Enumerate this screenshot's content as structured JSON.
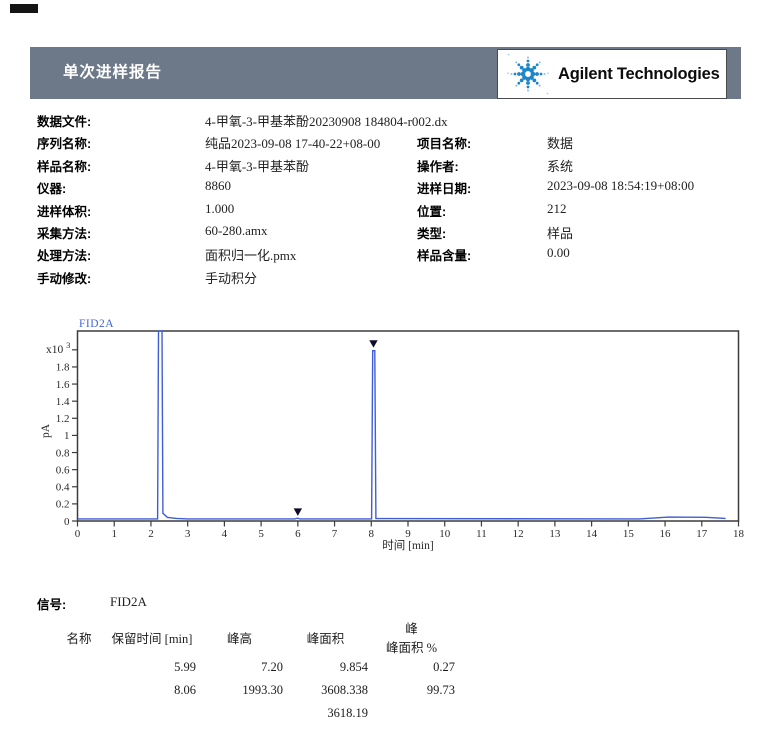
{
  "page": {
    "top_mark_color": "#141414"
  },
  "header": {
    "title": "单次进样报告",
    "brand": "Agilent Technologies",
    "bar_color": "#6d7988",
    "logo_blue": "#1d86c8"
  },
  "info": {
    "rows": [
      {
        "l": "数据文件:",
        "lv": "4-甲氧-3-甲基苯酚20230908 184804-r002.dx",
        "r": "",
        "rv": ""
      },
      {
        "l": "序列名称:",
        "lv": "纯品2023-09-08 17-40-22+08-00",
        "r": "项目名称:",
        "rv": "数据"
      },
      {
        "l": "样品名称:",
        "lv": "4-甲氧-3-甲基苯酚",
        "r": "操作者:",
        "rv": "系统"
      },
      {
        "l": "仪器:",
        "lv": "8860",
        "r": "进样日期:",
        "rv": "2023-09-08 18:54:19+08:00"
      },
      {
        "l": "进样体积:",
        "lv": "1.000",
        "r": "位置:",
        "rv": "212"
      },
      {
        "l": "采集方法:",
        "lv": "60-280.amx",
        "r": "类型:",
        "rv": "样品"
      },
      {
        "l": "处理方法:",
        "lv": "面积归一化.pmx",
        "r": "样品含量:",
        "rv": "0.00"
      },
      {
        "l": "手动修改:",
        "lv": "手动积分",
        "r": "",
        "rv": ""
      }
    ]
  },
  "chart_data": {
    "type": "line",
    "title": "FID2A",
    "xlabel": "时间 [min]",
    "ylabel": "pA",
    "y_multiplier_base": "x10",
    "y_multiplier_exp": "3",
    "xlim": [
      0,
      18
    ],
    "ylim": [
      0,
      2.22
    ],
    "x_ticks": [
      0,
      1,
      2,
      3,
      4,
      5,
      6,
      7,
      8,
      9,
      10,
      11,
      12,
      13,
      14,
      15,
      16,
      17,
      18
    ],
    "y_ticks": [
      0,
      0.2,
      0.4,
      0.6,
      0.8,
      1,
      1.2,
      1.4,
      1.6,
      1.8,
      2
    ],
    "y_label_max": 1.8,
    "line_color": "#3f5ed6",
    "axis_color": "#3c3c3c",
    "marker_color": "#0d0d2b",
    "trace": [
      [
        0,
        0.025
      ],
      [
        2.18,
        0.025
      ],
      [
        2.205,
        2.22
      ],
      [
        2.3,
        2.22
      ],
      [
        2.325,
        0.09
      ],
      [
        2.45,
        0.042
      ],
      [
        2.7,
        0.03
      ],
      [
        3.0,
        0.025
      ],
      [
        5.92,
        0.025
      ],
      [
        5.99,
        0.033
      ],
      [
        6.06,
        0.025
      ],
      [
        8.01,
        0.025
      ],
      [
        8.04,
        1.99
      ],
      [
        8.095,
        1.99
      ],
      [
        8.125,
        0.028
      ],
      [
        15.3,
        0.025
      ],
      [
        16.1,
        0.045
      ],
      [
        17.1,
        0.043
      ],
      [
        17.65,
        0.03
      ]
    ],
    "markers": [
      {
        "t": 6.0,
        "v": 0.105
      },
      {
        "t": 8.06,
        "v": 2.07
      }
    ],
    "peaks": [
      {
        "retention_min": 5.99,
        "height_pA": 7.2
      },
      {
        "retention_min": 8.06,
        "height_pA": 1993.3
      }
    ]
  },
  "signal": {
    "label": "信号:",
    "value": "FID2A"
  },
  "peak_table": {
    "headers": [
      "名称",
      "保留时间 [min]",
      "峰高",
      "峰面积",
      "峰|峰面积 %"
    ],
    "rows": [
      [
        "",
        "5.99",
        "7.20",
        "9.854",
        "0.27"
      ],
      [
        "",
        "8.06",
        "1993.30",
        "3608.338",
        "99.73"
      ]
    ],
    "total_area": "3618.19"
  }
}
